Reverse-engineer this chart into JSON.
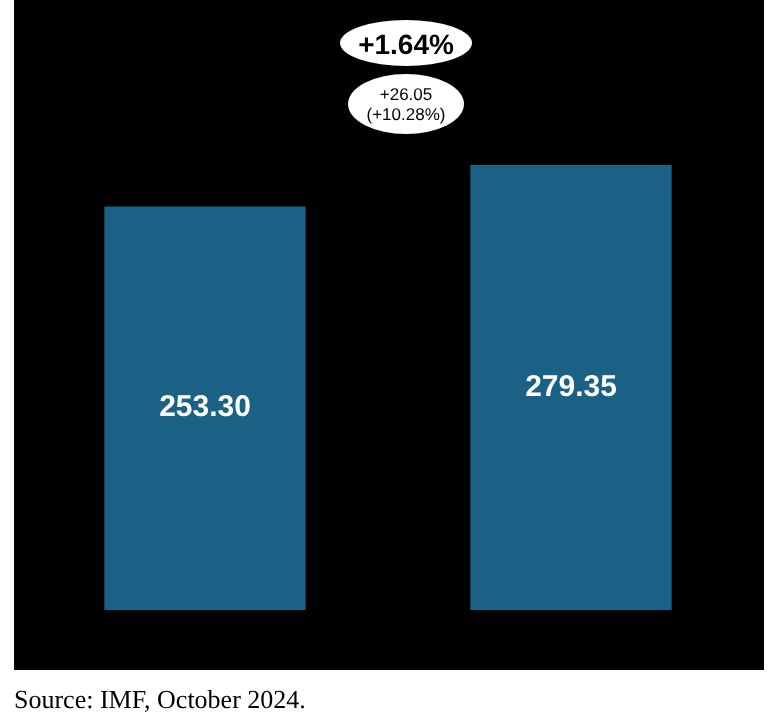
{
  "chart_data": {
    "type": "bar",
    "categories": [
      null,
      null
    ],
    "values": [
      253.3,
      279.35
    ],
    "value_labels": [
      "253.30",
      "279.35"
    ],
    "color": "#1b6185",
    "tick_labels": false,
    "legend": false,
    "annotations": [
      "+1.64%",
      "+26.05\n(+10.28%)",
      "Source: IMF, October 2024."
    ]
  }
}
